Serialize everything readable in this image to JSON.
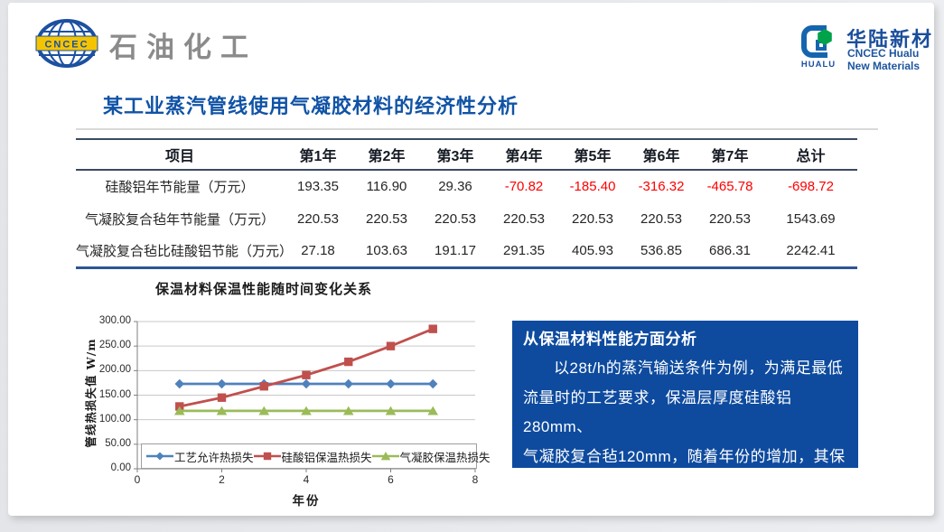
{
  "header": {
    "cncec_logo_text": "CNCEC",
    "brand_text": "石油化工",
    "hualu": {
      "mark_text": "HUALU",
      "name_cn": "华陆新材",
      "name_en1": "CNCEC Hualu",
      "name_en2": "New Materials"
    }
  },
  "title": "某工业蒸汽管线使用气凝胶材料的经济性分析",
  "table": {
    "headers": [
      "项目",
      "第1年",
      "第2年",
      "第3年",
      "第4年",
      "第5年",
      "第6年",
      "第7年",
      "总计"
    ],
    "rows": [
      {
        "label": "硅酸铝年节能量（万元）",
        "values": [
          "193.35",
          "116.90",
          "29.36",
          "-70.82",
          "-185.40",
          "-316.32",
          "-465.78",
          "-698.72"
        ]
      },
      {
        "label": "气凝胶复合毡年节能量（万元）",
        "values": [
          "220.53",
          "220.53",
          "220.53",
          "220.53",
          "220.53",
          "220.53",
          "220.53",
          "1543.69"
        ]
      },
      {
        "label": "气凝胶复合毡比硅酸铝节能（万元）",
        "values": [
          "27.18",
          "103.63",
          "191.17",
          "291.35",
          "405.93",
          "536.85",
          "686.31",
          "2242.41"
        ]
      }
    ],
    "negative_color": "#fe0000"
  },
  "chart_data": {
    "type": "line",
    "title": "保温材料保温性能随时间变化关系",
    "xlabel": "年份",
    "ylabel": "管线热损失值 W/m",
    "x": [
      1,
      2,
      3,
      4,
      5,
      6,
      7
    ],
    "xlim": [
      0,
      8
    ],
    "x_ticks": [
      0,
      2,
      4,
      6,
      8
    ],
    "ylim": [
      0,
      300
    ],
    "y_ticks": [
      "300.00",
      "250.00",
      "200.00",
      "150.00",
      "100.00",
      "50.00",
      "0.00"
    ],
    "grid": true,
    "legend_position": "bottom-inside",
    "series": [
      {
        "name": "工艺允许热损失",
        "marker": "diamond",
        "color": "#4F81BD",
        "values": [
          173,
          173,
          173,
          173,
          173,
          173,
          173
        ]
      },
      {
        "name": "硅酸铝保温热损失",
        "marker": "square",
        "color": "#C0504D",
        "values": [
          127,
          145,
          168,
          191,
          218,
          250,
          285
        ]
      },
      {
        "name": "气凝胶保温热损失",
        "marker": "triangle",
        "color": "#9BBB59",
        "values": [
          118,
          118,
          118,
          118,
          118,
          118,
          118
        ]
      }
    ]
  },
  "info_box": {
    "title": "从保温材料性能方面分析",
    "body": "以28t/h的蒸汽输送条件为例，为满足最低\n流量时的工艺要求，保温层厚度硅酸铝280mm、\n气凝胶复合毡120mm，随着年份的增加，其保\n温效果如图所示:",
    "background": "#0e4b9f"
  }
}
